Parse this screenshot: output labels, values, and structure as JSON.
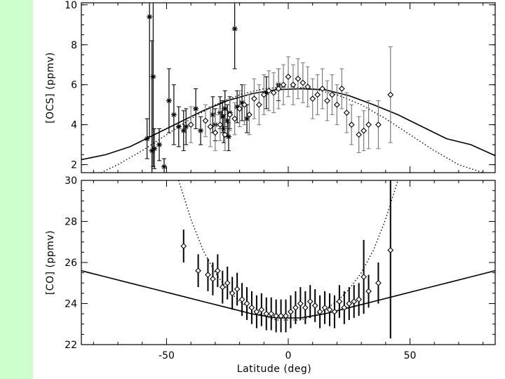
{
  "colors": {
    "sidebar": "#ccffcc",
    "ink": "#000000",
    "error_bar_gray": "#7a7a7a"
  },
  "chart_data": [
    {
      "type": "scatter",
      "ylabel": "[OCS]  (ppmv)",
      "xlabel": "",
      "xlim": [
        -85,
        85
      ],
      "ylim": [
        1.6,
        10.1
      ],
      "xticks": [
        "-50",
        "0",
        "50"
      ],
      "yticks": [
        "2",
        "4",
        "6",
        "8",
        "10"
      ],
      "grid": false,
      "series": [
        {
          "marker": "asterisk",
          "points": [
            {
              "x": -58,
              "y": 3.3,
              "err": 1.0
            },
            {
              "x": -57,
              "y": 9.4,
              "err": 6.0
            },
            {
              "x": -56,
              "y": 2.7,
              "err": 5.5
            },
            {
              "x": -55.5,
              "y": 6.4,
              "err": 4.5
            },
            {
              "x": -55,
              "y": 2.8,
              "err": 1.0
            },
            {
              "x": -53,
              "y": 3.0,
              "err": 0.8
            },
            {
              "x": -51,
              "y": 1.9,
              "err": 0.4
            },
            {
              "x": -49,
              "y": 5.2,
              "err": 1.6
            },
            {
              "x": -47,
              "y": 4.5,
              "err": 1.5
            },
            {
              "x": -45,
              "y": 3.9,
              "err": 1.0
            },
            {
              "x": -43,
              "y": 3.7,
              "err": 1.0
            },
            {
              "x": -42,
              "y": 3.9,
              "err": 0.9
            },
            {
              "x": -38,
              "y": 4.8,
              "err": 1.0
            },
            {
              "x": -36,
              "y": 3.7,
              "err": 0.7
            },
            {
              "x": -31,
              "y": 4.5,
              "err": 0.9
            },
            {
              "x": -30,
              "y": 4.0,
              "err": 0.8
            },
            {
              "x": -28,
              "y": 4.6,
              "err": 0.8
            },
            {
              "x": -27,
              "y": 4.4,
              "err": 0.8
            },
            {
              "x": -26.5,
              "y": 3.8,
              "err": 0.7
            },
            {
              "x": -26,
              "y": 4.8,
              "err": 0.9
            },
            {
              "x": -25,
              "y": 4.2,
              "err": 0.8
            },
            {
              "x": -24.5,
              "y": 3.4,
              "err": 0.7
            },
            {
              "x": -24,
              "y": 4.6,
              "err": 0.8
            },
            {
              "x": -22,
              "y": 8.8,
              "err": 2.0
            },
            {
              "x": -21,
              "y": 4.9,
              "err": 0.8
            },
            {
              "x": -19,
              "y": 5.1,
              "err": 0.9
            },
            {
              "x": -17,
              "y": 4.3,
              "err": 0.7
            },
            {
              "x": -9,
              "y": 5.6,
              "err": 0.8
            },
            {
              "x": -4,
              "y": 6.0,
              "err": 0.8
            }
          ]
        },
        {
          "marker": "diamond",
          "points": [
            {
              "x": -40,
              "y": 4.0,
              "err": 0.9
            },
            {
              "x": -34,
              "y": 4.2,
              "err": 0.8
            },
            {
              "x": -32,
              "y": 3.9,
              "err": 1.0
            },
            {
              "x": -30,
              "y": 3.6,
              "err": 0.9
            },
            {
              "x": -28,
              "y": 4.0,
              "err": 0.8
            },
            {
              "x": -26,
              "y": 3.5,
              "err": 0.8
            },
            {
              "x": -24,
              "y": 4.5,
              "err": 0.8
            },
            {
              "x": -22,
              "y": 4.3,
              "err": 0.8
            },
            {
              "x": -20,
              "y": 4.8,
              "err": 0.9
            },
            {
              "x": -18,
              "y": 5.0,
              "err": 1.0
            },
            {
              "x": -16,
              "y": 4.5,
              "err": 1.0
            },
            {
              "x": -14,
              "y": 5.3,
              "err": 1.0
            },
            {
              "x": -12,
              "y": 5.0,
              "err": 1.0
            },
            {
              "x": -10,
              "y": 5.5,
              "err": 1.0
            },
            {
              "x": -8,
              "y": 5.7,
              "err": 1.0
            },
            {
              "x": -6,
              "y": 5.6,
              "err": 1.0
            },
            {
              "x": -4,
              "y": 5.8,
              "err": 1.0
            },
            {
              "x": -2,
              "y": 6.0,
              "err": 1.0
            },
            {
              "x": 0,
              "y": 6.4,
              "err": 1.0
            },
            {
              "x": 2,
              "y": 6.0,
              "err": 1.0
            },
            {
              "x": 4,
              "y": 6.3,
              "err": 1.0
            },
            {
              "x": 6,
              "y": 6.1,
              "err": 1.0
            },
            {
              "x": 8,
              "y": 5.9,
              "err": 1.0
            },
            {
              "x": 10,
              "y": 5.3,
              "err": 1.0
            },
            {
              "x": 12,
              "y": 5.5,
              "err": 1.0
            },
            {
              "x": 14,
              "y": 5.8,
              "err": 1.0
            },
            {
              "x": 16,
              "y": 5.2,
              "err": 1.0
            },
            {
              "x": 18,
              "y": 5.5,
              "err": 1.0
            },
            {
              "x": 20,
              "y": 5.0,
              "err": 1.0
            },
            {
              "x": 22,
              "y": 5.8,
              "err": 1.0
            },
            {
              "x": 24,
              "y": 4.6,
              "err": 1.0
            },
            {
              "x": 26,
              "y": 4.0,
              "err": 1.0
            },
            {
              "x": 29,
              "y": 3.5,
              "err": 0.9
            },
            {
              "x": 31,
              "y": 3.7,
              "err": 1.0
            },
            {
              "x": 33,
              "y": 4.0,
              "err": 1.2
            },
            {
              "x": 37,
              "y": 4.0,
              "err": 1.2
            },
            {
              "x": 42,
              "y": 5.5,
              "err": 2.4
            }
          ]
        }
      ],
      "lines": [
        {
          "style": "solid",
          "x": [
            -85,
            -75,
            -65,
            -55,
            -45,
            -35,
            -25,
            -15,
            -5,
            5,
            15,
            25,
            35,
            45,
            55,
            65,
            75,
            85
          ],
          "y": [
            2.25,
            2.5,
            2.9,
            3.5,
            4.1,
            4.7,
            5.2,
            5.55,
            5.75,
            5.8,
            5.75,
            5.45,
            5.0,
            4.5,
            3.9,
            3.3,
            3.0,
            2.45
          ]
        },
        {
          "style": "dotted",
          "x": [
            -77,
            -70,
            -60,
            -50,
            -40,
            -30,
            -20,
            -10,
            0,
            10,
            20,
            30,
            40,
            50,
            60,
            70,
            80
          ],
          "y": [
            1.6,
            2.0,
            2.7,
            3.5,
            4.3,
            5.0,
            5.5,
            5.8,
            5.9,
            5.8,
            5.5,
            5.0,
            4.3,
            3.5,
            2.7,
            2.0,
            1.6
          ]
        }
      ]
    },
    {
      "type": "scatter",
      "ylabel": "[CO]  (ppmv)",
      "xlabel": "Latitude  (deg)",
      "xlim": [
        -85,
        85
      ],
      "ylim": [
        22,
        30
      ],
      "xticks": [
        "-50",
        "0",
        "50"
      ],
      "yticks": [
        "22",
        "24",
        "26",
        "28",
        "30"
      ],
      "grid": false,
      "series": [
        {
          "marker": "diamond",
          "points": [
            {
              "x": -43,
              "y": 26.8,
              "err": 0.8
            },
            {
              "x": -37,
              "y": 25.6,
              "err": 0.8
            },
            {
              "x": -33,
              "y": 25.4,
              "err": 0.8
            },
            {
              "x": -31,
              "y": 25.2,
              "err": 0.8
            },
            {
              "x": -29,
              "y": 25.6,
              "err": 0.8
            },
            {
              "x": -27,
              "y": 24.8,
              "err": 0.8
            },
            {
              "x": -25,
              "y": 25.0,
              "err": 0.8
            },
            {
              "x": -23,
              "y": 24.5,
              "err": 0.8
            },
            {
              "x": -21,
              "y": 24.7,
              "err": 0.8
            },
            {
              "x": -19,
              "y": 24.2,
              "err": 0.8
            },
            {
              "x": -17,
              "y": 24.0,
              "err": 0.8
            },
            {
              "x": -15,
              "y": 23.8,
              "err": 0.8
            },
            {
              "x": -13,
              "y": 23.6,
              "err": 0.8
            },
            {
              "x": -11,
              "y": 23.7,
              "err": 0.8
            },
            {
              "x": -9,
              "y": 23.5,
              "err": 0.8
            },
            {
              "x": -7,
              "y": 23.5,
              "err": 0.8
            },
            {
              "x": -5,
              "y": 23.4,
              "err": 0.8
            },
            {
              "x": -3,
              "y": 23.4,
              "err": 0.8
            },
            {
              "x": -1,
              "y": 23.4,
              "err": 0.8
            },
            {
              "x": 1,
              "y": 23.6,
              "err": 0.8
            },
            {
              "x": 3,
              "y": 23.8,
              "err": 0.8
            },
            {
              "x": 5,
              "y": 24.0,
              "err": 0.8
            },
            {
              "x": 7,
              "y": 23.8,
              "err": 0.8
            },
            {
              "x": 9,
              "y": 24.1,
              "err": 0.8
            },
            {
              "x": 11,
              "y": 23.9,
              "err": 0.8
            },
            {
              "x": 13,
              "y": 23.6,
              "err": 0.8
            },
            {
              "x": 15,
              "y": 23.8,
              "err": 0.8
            },
            {
              "x": 17,
              "y": 23.7,
              "err": 0.8
            },
            {
              "x": 19,
              "y": 23.6,
              "err": 0.8
            },
            {
              "x": 21,
              "y": 24.1,
              "err": 0.8
            },
            {
              "x": 23,
              "y": 23.8,
              "err": 0.8
            },
            {
              "x": 25,
              "y": 24.0,
              "err": 0.8
            },
            {
              "x": 27,
              "y": 24.1,
              "err": 0.8
            },
            {
              "x": 29,
              "y": 24.2,
              "err": 0.8
            },
            {
              "x": 31,
              "y": 25.3,
              "err": 1.8
            },
            {
              "x": 33,
              "y": 24.6,
              "err": 0.8
            },
            {
              "x": 37,
              "y": 25.0,
              "err": 1.0
            },
            {
              "x": 42,
              "y": 26.6,
              "err": 4.3
            }
          ]
        }
      ],
      "lines": [
        {
          "style": "solid",
          "x": [
            -85,
            -75,
            -65,
            -55,
            -45,
            -35,
            -25,
            -15,
            -5,
            5,
            15,
            25,
            35,
            45,
            55,
            65,
            75,
            85
          ],
          "y": [
            25.6,
            25.3,
            25.0,
            24.7,
            24.4,
            24.1,
            23.8,
            23.5,
            23.3,
            23.3,
            23.5,
            23.8,
            24.1,
            24.4,
            24.7,
            25.0,
            25.3,
            25.6
          ]
        },
        {
          "style": "dotted",
          "x": [
            -45,
            -40,
            -35,
            -30,
            -25,
            -20,
            -15,
            -10,
            -5,
            0,
            5,
            10,
            15,
            20,
            25,
            30,
            35,
            40,
            45
          ],
          "y": [
            30.0,
            28.1,
            26.6,
            25.5,
            24.7,
            24.1,
            23.7,
            23.4,
            23.2,
            23.2,
            23.2,
            23.4,
            23.7,
            24.1,
            24.7,
            25.5,
            26.6,
            28.1,
            30.0
          ]
        }
      ]
    }
  ]
}
